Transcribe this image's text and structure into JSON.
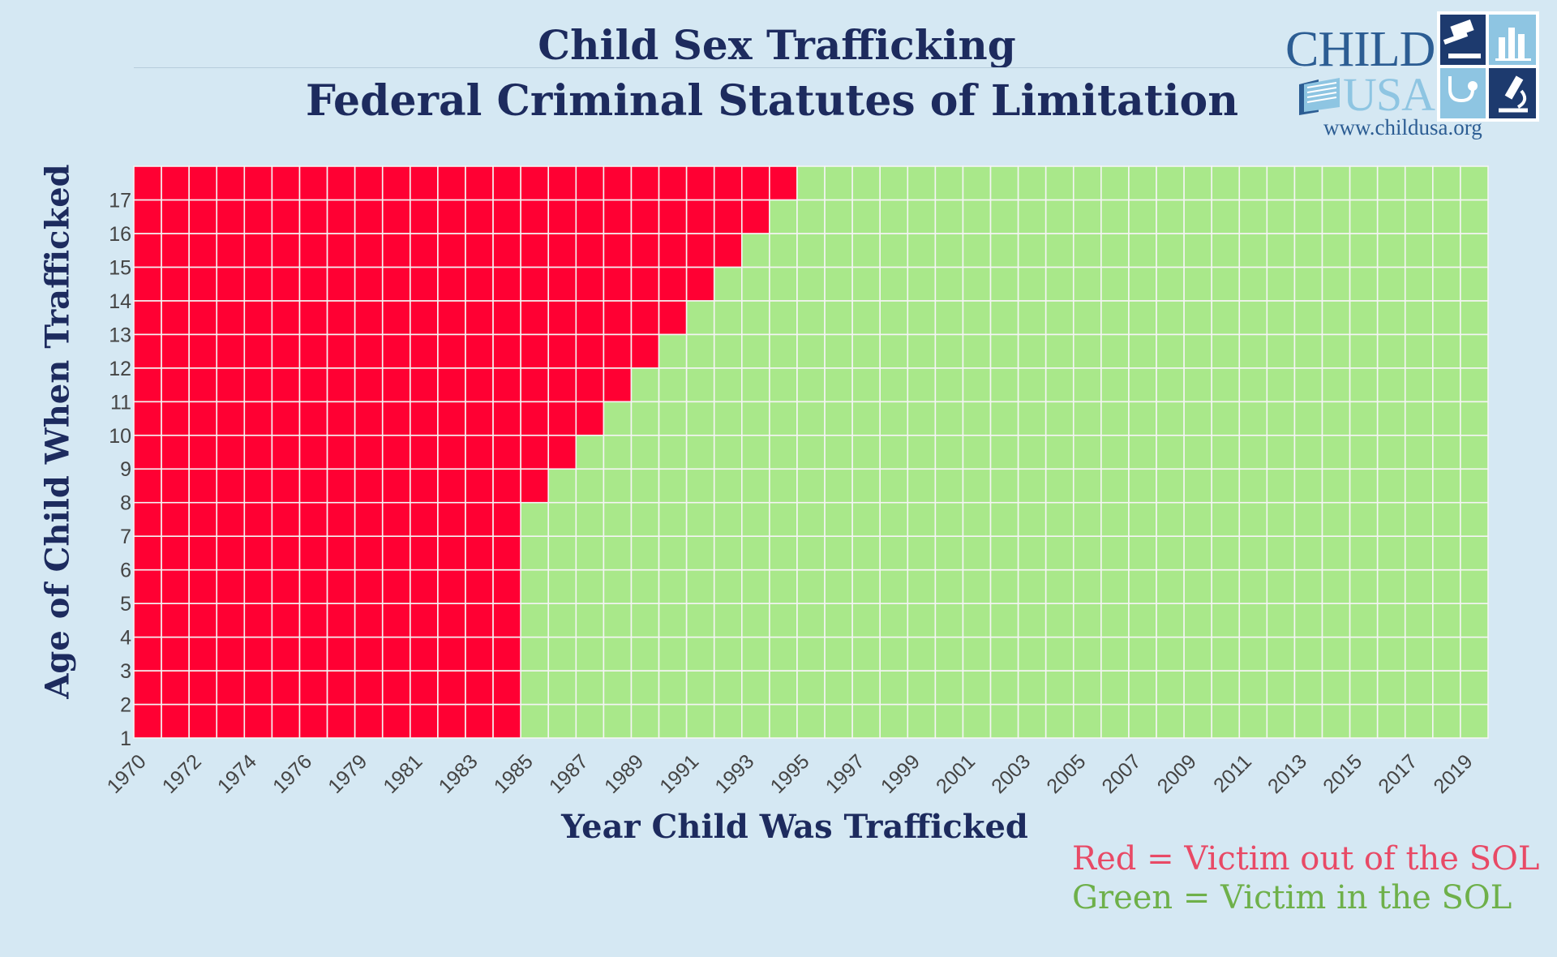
{
  "title": "Child Sex Trafficking",
  "subtitle": "Federal Criminal Statutes of Limitation",
  "logo": {
    "word1": "CHILD",
    "word2": "USA",
    "url": "www.childusa.org"
  },
  "legend": {
    "red": "Red = Victim out of the SOL",
    "green": "Green = Victim in the SOL"
  },
  "colors": {
    "out_of_sol": "#ff0033",
    "in_sol": "#a9e88a",
    "background": "#d5e8f3",
    "title": "#1d2b5e"
  },
  "chart_data": {
    "type": "heatmap",
    "title": "Child Sex Trafficking",
    "subtitle": "Federal Criminal Statutes of Limitation",
    "xlabel": "Year Child Was Trafficked",
    "ylabel": "Age of Child When Trafficked",
    "x": [
      1970,
      1971,
      1972,
      1973,
      1974,
      1975,
      1976,
      1977,
      1979,
      1980,
      1981,
      1982,
      1983,
      1984,
      1985,
      1986,
      1987,
      1988,
      1989,
      1990,
      1991,
      1992,
      1993,
      1994,
      1995,
      1996,
      1997,
      1998,
      1999,
      2000,
      2001,
      2002,
      2003,
      2004,
      2005,
      2006,
      2007,
      2008,
      2009,
      2010,
      2011,
      2012,
      2013,
      2014,
      2015,
      2016,
      2017,
      2018,
      2019
    ],
    "x_tick_labels": [
      "1970",
      "1972",
      "1974",
      "1976",
      "1979",
      "1981",
      "1983",
      "1985",
      "1987",
      "1989",
      "1991",
      "1993",
      "1995",
      "1997",
      "1999",
      "2001",
      "2003",
      "2005",
      "2007",
      "2009",
      "2011",
      "2013",
      "2015",
      "2017",
      "2019"
    ],
    "y": [
      1,
      2,
      3,
      4,
      5,
      6,
      7,
      8,
      9,
      10,
      11,
      12,
      13,
      14,
      15,
      16,
      17
    ],
    "categories_legend": [
      "Victim out of the SOL",
      "Victim in the SOL"
    ],
    "out_of_sol_through_year": {
      "1": 1984,
      "2": 1984,
      "3": 1984,
      "4": 1984,
      "5": 1984,
      "6": 1984,
      "7": 1984,
      "8": 1985,
      "9": 1986,
      "10": 1987,
      "11": 1988,
      "12": 1989,
      "13": 1990,
      "14": 1991,
      "15": 1992,
      "16": 1993,
      "17": 1994
    },
    "grid": true,
    "legend_position": "bottom-right"
  }
}
